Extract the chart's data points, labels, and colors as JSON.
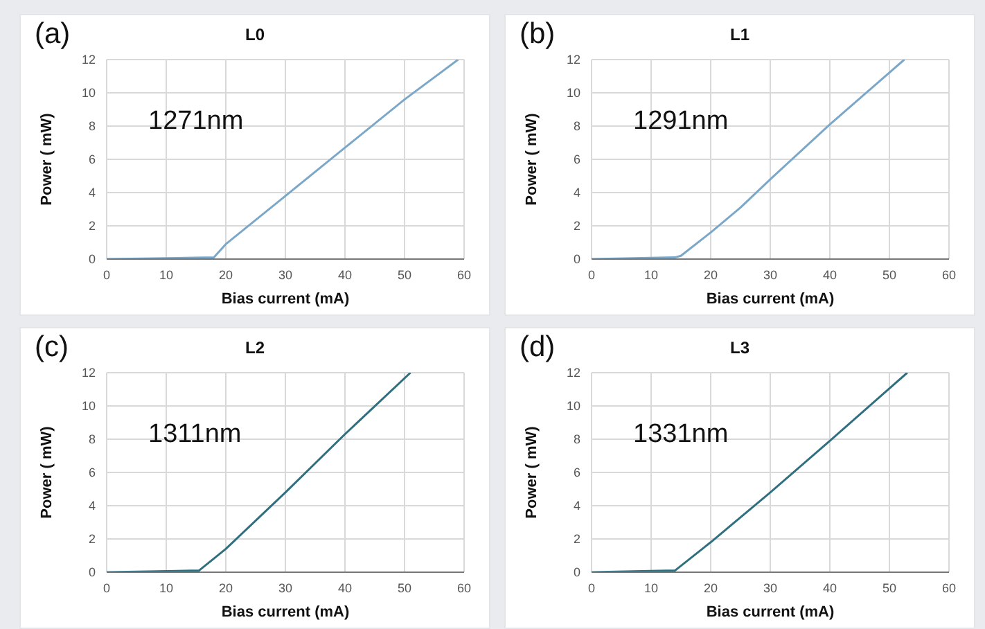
{
  "chart_data": [
    {
      "type": "line",
      "title": "L0",
      "xlabel": "Bias current (mA)",
      "ylabel": "Power ( mW)",
      "annotations": [
        "(a)",
        "1271nm"
      ],
      "xlim": [
        0,
        60
      ],
      "xticks": [
        0,
        10,
        20,
        30,
        40,
        50,
        60
      ],
      "ylim": [
        0,
        12
      ],
      "yticks": [
        0,
        2,
        4,
        6,
        8,
        10,
        12
      ],
      "grid": true,
      "marker": "none",
      "line_style": "solid",
      "series": [
        {
          "color": "#7ba7c9",
          "x": [
            0,
            18,
            20,
            30,
            40,
            50,
            59
          ],
          "values": [
            0,
            0.1,
            0.9,
            3.8,
            6.7,
            9.6,
            12
          ]
        }
      ]
    },
    {
      "type": "line",
      "title": "L1",
      "xlabel": "Bias current (mA)",
      "ylabel": "Power ( mW)",
      "annotations": [
        "(b)",
        "1291nm"
      ],
      "xlim": [
        0,
        60
      ],
      "xticks": [
        0,
        10,
        20,
        30,
        40,
        50,
        60
      ],
      "ylim": [
        0,
        12
      ],
      "yticks": [
        0,
        2,
        4,
        6,
        8,
        10,
        12
      ],
      "grid": true,
      "marker": "none",
      "line_style": "solid",
      "series": [
        {
          "color": "#7ba7c9",
          "x": [
            0,
            14,
            15,
            20,
            25,
            30,
            40,
            52.5
          ],
          "values": [
            0,
            0.1,
            0.2,
            1.6,
            3.1,
            4.8,
            8.1,
            12
          ]
        }
      ]
    },
    {
      "type": "line",
      "title": "L2",
      "xlabel": "Bias current (mA)",
      "ylabel": "Power ( mW)",
      "annotations": [
        "(c)",
        "1311nm"
      ],
      "xlim": [
        0,
        60
      ],
      "xticks": [
        0,
        10,
        20,
        30,
        40,
        50,
        60
      ],
      "ylim": [
        0,
        12
      ],
      "yticks": [
        0,
        2,
        4,
        6,
        8,
        10,
        12
      ],
      "grid": true,
      "marker": "none",
      "line_style": "solid",
      "series": [
        {
          "color": "#2f6f7f",
          "x": [
            0,
            15.5,
            20,
            30,
            40,
            51
          ],
          "values": [
            0,
            0.1,
            1.4,
            4.8,
            8.3,
            12
          ]
        }
      ]
    },
    {
      "type": "line",
      "title": "L3",
      "xlabel": "Bias current (mA)",
      "ylabel": "Power ( mW)",
      "annotations": [
        "(d)",
        "1331nm"
      ],
      "xlim": [
        0,
        60
      ],
      "xticks": [
        0,
        10,
        20,
        30,
        40,
        50,
        60
      ],
      "ylim": [
        0,
        12
      ],
      "yticks": [
        0,
        2,
        4,
        6,
        8,
        10,
        12
      ],
      "grid": true,
      "marker": "none",
      "line_style": "solid",
      "series": [
        {
          "color": "#2f6f7f",
          "x": [
            0,
            14,
            20,
            30,
            40,
            53
          ],
          "values": [
            0,
            0.1,
            1.8,
            4.8,
            7.9,
            12
          ]
        }
      ]
    }
  ]
}
